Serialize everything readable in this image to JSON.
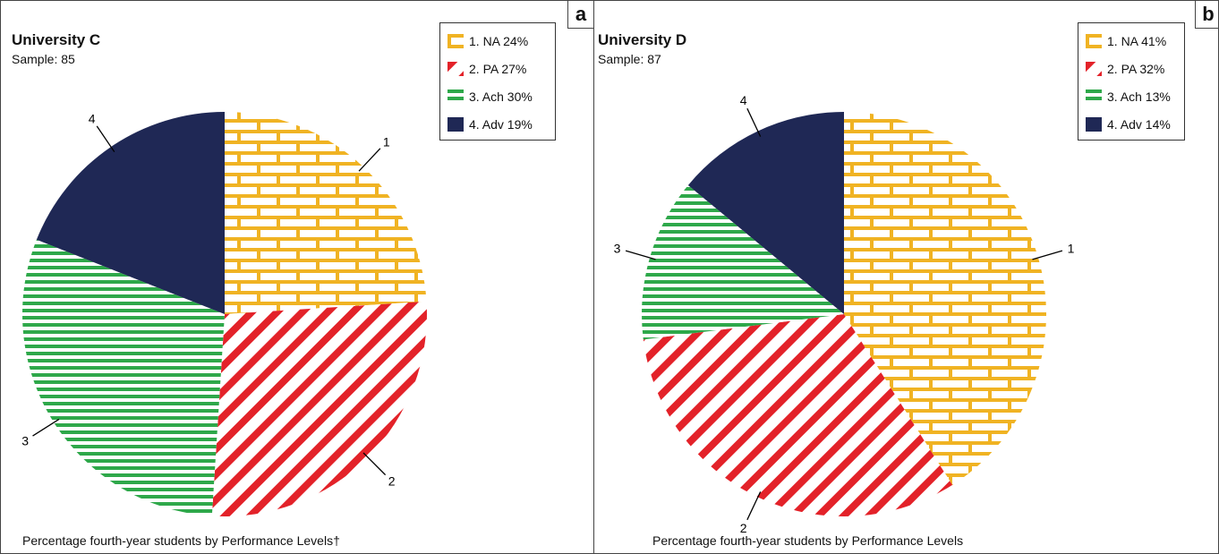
{
  "colors": {
    "na": "#f0b323",
    "pa": "#e32229",
    "ach": "#2ea84a",
    "adv": "#1f2855"
  },
  "chart_data": [
    {
      "type": "pie",
      "panel_label": "a",
      "title": "University C",
      "subtitle": "Sample: 85",
      "footnote": "Percentage fourth-year students by Performance Levels†",
      "slices": [
        {
          "key": "na",
          "label": "1",
          "legend": "1. NA 24%",
          "value": 24,
          "pattern": "brick"
        },
        {
          "key": "pa",
          "label": "2",
          "legend": "2. PA 27%",
          "value": 27,
          "pattern": "diagonal"
        },
        {
          "key": "ach",
          "label": "3",
          "legend": "3. Ach 30%",
          "value": 30,
          "pattern": "horizontal"
        },
        {
          "key": "adv",
          "label": "4",
          "legend": "4. Adv 19%",
          "value": 19,
          "pattern": "solid"
        }
      ],
      "legend_position": "top-right"
    },
    {
      "type": "pie",
      "panel_label": "b",
      "title": "University D",
      "subtitle": "Sample: 87",
      "footnote": "Percentage fourth-year students by Performance Levels",
      "slices": [
        {
          "key": "na",
          "label": "1",
          "legend": "1. NA 41%",
          "value": 41,
          "pattern": "brick"
        },
        {
          "key": "pa",
          "label": "2",
          "legend": "2. PA 32%",
          "value": 32,
          "pattern": "diagonal"
        },
        {
          "key": "ach",
          "label": "3",
          "legend": "3. Ach 13%",
          "value": 13,
          "pattern": "horizontal"
        },
        {
          "key": "adv",
          "label": "4",
          "legend": "4. Adv 14%",
          "value": 14,
          "pattern": "solid"
        }
      ],
      "legend_position": "top-right"
    }
  ]
}
